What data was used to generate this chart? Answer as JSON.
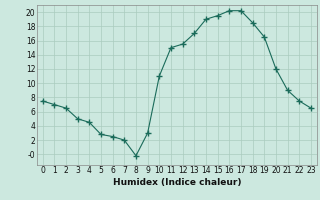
{
  "x": [
    0,
    1,
    2,
    3,
    4,
    5,
    6,
    7,
    8,
    9,
    10,
    11,
    12,
    13,
    14,
    15,
    16,
    17,
    18,
    19,
    20,
    21,
    22,
    23
  ],
  "y": [
    7.5,
    7.0,
    6.5,
    5.0,
    4.5,
    2.8,
    2.5,
    2.0,
    -0.2,
    3.0,
    11.0,
    15.0,
    15.5,
    17.0,
    19.0,
    19.5,
    20.2,
    20.2,
    18.5,
    16.5,
    12.0,
    9.0,
    7.5,
    6.5
  ],
  "line_color": "#1a6b5a",
  "marker": "+",
  "marker_size": 4,
  "bg_color": "#cce8df",
  "grid_color": "#aaccbf",
  "grid_minor_color": "#bbddd4",
  "xlabel": "Humidex (Indice chaleur)",
  "ylim": [
    -1.5,
    21
  ],
  "xlim": [
    -0.5,
    23.5
  ],
  "yticks": [
    0,
    2,
    4,
    6,
    8,
    10,
    12,
    14,
    16,
    18,
    20
  ],
  "ytick_labels": [
    "-0",
    "2",
    "4",
    "6",
    "8",
    "10",
    "12",
    "14",
    "16",
    "18",
    "20"
  ],
  "xticks": [
    0,
    1,
    2,
    3,
    4,
    5,
    6,
    7,
    8,
    9,
    10,
    11,
    12,
    13,
    14,
    15,
    16,
    17,
    18,
    19,
    20,
    21,
    22,
    23
  ],
  "xtick_labels": [
    "0",
    "1",
    "2",
    "3",
    "4",
    "5",
    "6",
    "7",
    "8",
    "9",
    "10",
    "11",
    "12",
    "13",
    "14",
    "15",
    "16",
    "17",
    "18",
    "19",
    "20",
    "21",
    "22",
    "23"
  ]
}
